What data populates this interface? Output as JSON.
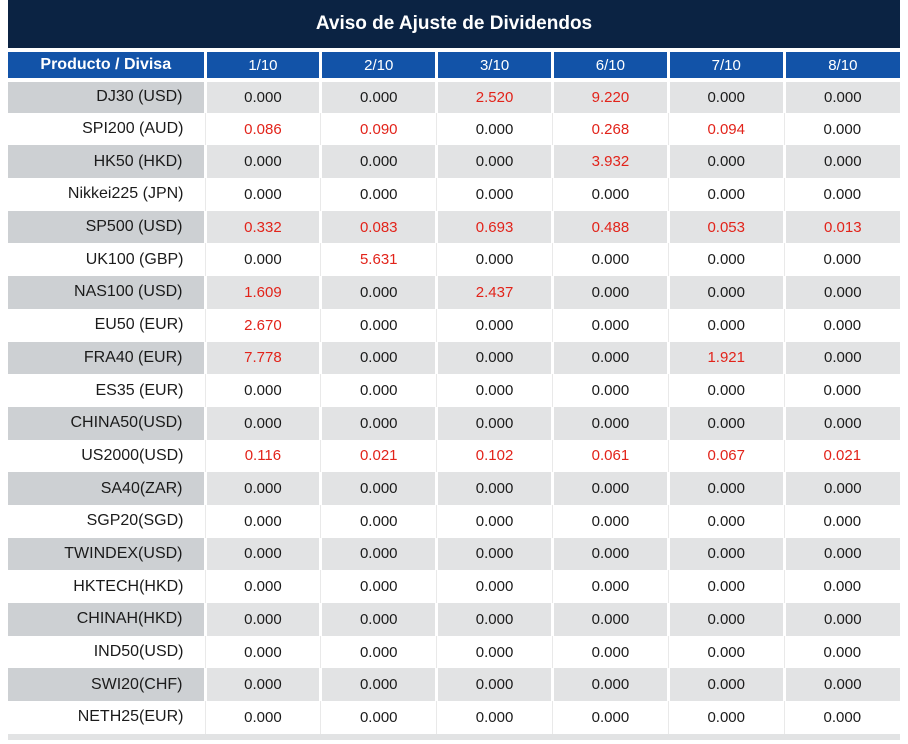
{
  "title": "Aviso de Ajuste de Dividendos",
  "table": {
    "product_column_header": "Producto / Divisa",
    "date_columns": [
      "1/10",
      "2/10",
      "3/10",
      "6/10",
      "7/10",
      "8/10"
    ],
    "zero_value": "0.000",
    "rows": [
      {
        "product": "DJ30 (USD)",
        "values": [
          "0.000",
          "0.000",
          "2.520",
          "9.220",
          "0.000",
          "0.000"
        ]
      },
      {
        "product": "SPI200 (AUD)",
        "values": [
          "0.086",
          "0.090",
          "0.000",
          "0.268",
          "0.094",
          "0.000"
        ]
      },
      {
        "product": "HK50 (HKD)",
        "values": [
          "0.000",
          "0.000",
          "0.000",
          "3.932",
          "0.000",
          "0.000"
        ]
      },
      {
        "product": "Nikkei225 (JPN)",
        "values": [
          "0.000",
          "0.000",
          "0.000",
          "0.000",
          "0.000",
          "0.000"
        ]
      },
      {
        "product": "SP500 (USD)",
        "values": [
          "0.332",
          "0.083",
          "0.693",
          "0.488",
          "0.053",
          "0.013"
        ]
      },
      {
        "product": "UK100 (GBP)",
        "values": [
          "0.000",
          "5.631",
          "0.000",
          "0.000",
          "0.000",
          "0.000"
        ]
      },
      {
        "product": "NAS100 (USD)",
        "values": [
          "1.609",
          "0.000",
          "2.437",
          "0.000",
          "0.000",
          "0.000"
        ]
      },
      {
        "product": "EU50 (EUR)",
        "values": [
          "2.670",
          "0.000",
          "0.000",
          "0.000",
          "0.000",
          "0.000"
        ]
      },
      {
        "product": "FRA40 (EUR)",
        "values": [
          "7.778",
          "0.000",
          "0.000",
          "0.000",
          "1.921",
          "0.000"
        ]
      },
      {
        "product": "ES35 (EUR)",
        "values": [
          "0.000",
          "0.000",
          "0.000",
          "0.000",
          "0.000",
          "0.000"
        ]
      },
      {
        "product": "CHINA50(USD)",
        "values": [
          "0.000",
          "0.000",
          "0.000",
          "0.000",
          "0.000",
          "0.000"
        ]
      },
      {
        "product": "US2000(USD)",
        "values": [
          "0.116",
          "0.021",
          "0.102",
          "0.061",
          "0.067",
          "0.021"
        ]
      },
      {
        "product": "SA40(ZAR)",
        "values": [
          "0.000",
          "0.000",
          "0.000",
          "0.000",
          "0.000",
          "0.000"
        ]
      },
      {
        "product": "SGP20(SGD)",
        "values": [
          "0.000",
          "0.000",
          "0.000",
          "0.000",
          "0.000",
          "0.000"
        ]
      },
      {
        "product": "TWINDEX(USD)",
        "values": [
          "0.000",
          "0.000",
          "0.000",
          "0.000",
          "0.000",
          "0.000"
        ]
      },
      {
        "product": "HKTECH(HKD)",
        "values": [
          "0.000",
          "0.000",
          "0.000",
          "0.000",
          "0.000",
          "0.000"
        ]
      },
      {
        "product": "CHINAH(HKD)",
        "values": [
          "0.000",
          "0.000",
          "0.000",
          "0.000",
          "0.000",
          "0.000"
        ]
      },
      {
        "product": "IND50(USD)",
        "values": [
          "0.000",
          "0.000",
          "0.000",
          "0.000",
          "0.000",
          "0.000"
        ]
      },
      {
        "product": "SWI20(CHF)",
        "values": [
          "0.000",
          "0.000",
          "0.000",
          "0.000",
          "0.000",
          "0.000"
        ]
      },
      {
        "product": "NETH25(EUR)",
        "values": [
          "0.000",
          "0.000",
          "0.000",
          "0.000",
          "0.000",
          "0.000"
        ]
      }
    ]
  },
  "colors": {
    "titleBg": "#0b2343",
    "titleText": "#ffffff",
    "headerBg": "#1253a8",
    "headerText": "#ffffff",
    "rowAltProductBg": "#cdd0d3",
    "rowAltCellBg": "#e2e3e4",
    "valueZero": "#1b1b1b",
    "valueNonzero": "#e2231a"
  }
}
